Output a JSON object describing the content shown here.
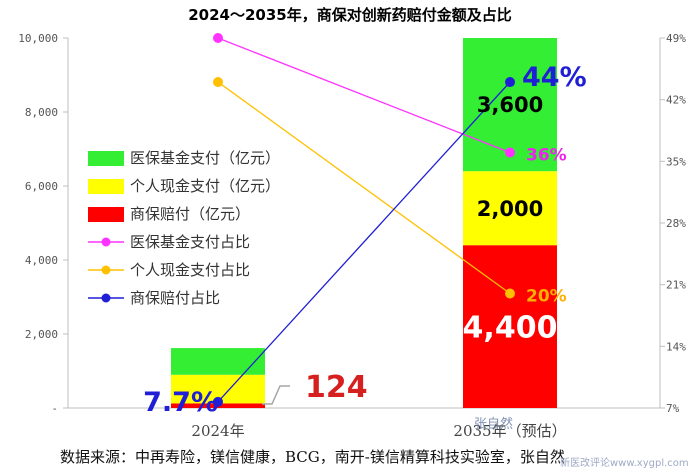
{
  "chart_data": {
    "type": "bar",
    "title": "2024～2035年，商保对创新药赔付金额及占比",
    "categories": [
      "2024年",
      "2035年（预估）"
    ],
    "left_axis": {
      "ylim": [
        0,
        10000
      ],
      "ticks": [
        {
          "value": 0,
          "label": "-"
        },
        {
          "value": 2000,
          "label": "2,000"
        },
        {
          "value": 4000,
          "label": "4,000"
        },
        {
          "value": 6000,
          "label": "6,000"
        },
        {
          "value": 8000,
          "label": "8,000"
        },
        {
          "value": 10000,
          "label": "10,000"
        }
      ]
    },
    "right_axis": {
      "ylim": [
        7,
        49
      ],
      "ticks": [
        {
          "value": 7,
          "label": "7%"
        },
        {
          "value": 14,
          "label": "14%"
        },
        {
          "value": 21,
          "label": "21%"
        },
        {
          "value": 28,
          "label": "28%"
        },
        {
          "value": 35,
          "label": "35%"
        },
        {
          "value": 42,
          "label": "42%"
        },
        {
          "value": 49,
          "label": "49%"
        }
      ]
    },
    "bar_series": [
      {
        "name": "商保赔付（亿元）",
        "color": "#ff0000",
        "values": [
          124,
          4400
        ],
        "labels": [
          "124",
          "4,400"
        ]
      },
      {
        "name": "个人现金支付（亿元）",
        "color": "#ffff00",
        "values": [
          774,
          2000
        ],
        "labels": [
          "",
          "2,000"
        ]
      },
      {
        "name": "医保基金支付（亿元）",
        "color": "#33ee33",
        "values": [
          722,
          3600
        ],
        "labels": [
          "",
          "3,600"
        ]
      }
    ],
    "line_series": [
      {
        "name": "医保基金支付占比",
        "color": "#ff33ff",
        "values": [
          49,
          36
        ],
        "labels": [
          "",
          "36%"
        ]
      },
      {
        "name": "个人现金支付占比",
        "color": "#ffc000",
        "values": [
          44,
          20
        ],
        "labels": [
          "",
          "20%"
        ]
      },
      {
        "name": "商保赔付占比",
        "color": "#1f1fd6",
        "values": [
          7.7,
          44
        ],
        "labels": [
          "7.7%",
          "44%"
        ]
      }
    ],
    "legend": [
      {
        "label": "医保基金支付（亿元）",
        "kind": "bar",
        "color": "#33ee33"
      },
      {
        "label": "个人现金支付（亿元）",
        "kind": "bar",
        "color": "#ffff00"
      },
      {
        "label": "商保赔付（亿元）",
        "kind": "bar",
        "color": "#ff0000"
      },
      {
        "label": "医保基金支付占比",
        "kind": "line",
        "color": "#ff33ff"
      },
      {
        "label": "个人现金支付占比",
        "kind": "line",
        "color": "#ffc000"
      },
      {
        "label": "商保赔付占比",
        "kind": "line",
        "color": "#1f1fd6"
      }
    ],
    "legend_position": "left-middle",
    "grid": false
  },
  "source": "数据来源：中再寿险，镁信健康，BCG，南开-镁信精算科技实验室，张自然",
  "watermark": "张自然",
  "watermark_site": "新医改评论www.xygpl.com"
}
